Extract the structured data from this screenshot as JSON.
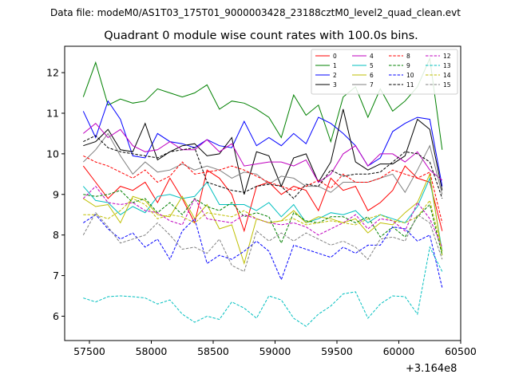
{
  "header": {
    "file_label": "Data file: modeM0/AS1T03_175T01_9000003428_23188cztM0_level2_quad_clean.evt"
  },
  "chart_data": {
    "type": "line",
    "title": "Quadrant 0 module wise count rates with 100.0s bins.",
    "xlabel": "",
    "ylabel": "",
    "x_offset_label": "+3.164e8",
    "xlim": [
      57300,
      60500
    ],
    "ylim": [
      5.4,
      12.65
    ],
    "x_ticks": [
      57500,
      58000,
      58500,
      59000,
      59500,
      60000,
      60500
    ],
    "y_ticks": [
      6,
      7,
      8,
      9,
      10,
      11,
      12
    ],
    "grid": false,
    "legend": {
      "position": "top-right",
      "columns": 4
    },
    "x": [
      57450,
      57550,
      57650,
      57750,
      57850,
      57950,
      58050,
      58150,
      58250,
      58350,
      58450,
      58550,
      58650,
      58750,
      58850,
      58950,
      59050,
      59150,
      59250,
      59350,
      59450,
      59550,
      59650,
      59750,
      59850,
      59950,
      60050,
      60150,
      60250,
      60350
    ],
    "series": [
      {
        "name": "0",
        "color": "#ff0000",
        "dash": "solid",
        "values": [
          9.7,
          9.3,
          8.9,
          9.2,
          9.1,
          9.3,
          8.8,
          9.4,
          8.9,
          8.3,
          9.6,
          9.4,
          9.0,
          8.1,
          9.2,
          9.3,
          9.0,
          9.2,
          9.1,
          8.6,
          9.4,
          9.1,
          9.2,
          8.6,
          8.8,
          9.1,
          9.7,
          9.4,
          9.3,
          8.1
        ]
      },
      {
        "name": "1",
        "color": "#008000",
        "dash": "solid",
        "values": [
          11.4,
          12.25,
          11.2,
          11.35,
          11.25,
          11.3,
          11.6,
          11.5,
          11.4,
          11.5,
          11.7,
          11.1,
          11.3,
          11.25,
          11.1,
          10.9,
          10.4,
          11.45,
          10.95,
          11.2,
          10.3,
          11.4,
          11.65,
          10.9,
          11.6,
          11.05,
          11.3,
          11.65,
          12.35,
          10.1
        ]
      },
      {
        "name": "2",
        "color": "#0000ff",
        "dash": "solid",
        "values": [
          11.05,
          10.4,
          11.3,
          10.85,
          9.95,
          9.9,
          10.5,
          10.3,
          10.25,
          10.15,
          10.35,
          10.2,
          10.15,
          10.8,
          10.2,
          10.4,
          10.2,
          10.5,
          10.25,
          10.9,
          10.75,
          10.5,
          10.2,
          9.7,
          9.9,
          10.55,
          10.75,
          10.9,
          10.85,
          9.2
        ]
      },
      {
        "name": "3",
        "color": "#000000",
        "dash": "solid",
        "values": [
          10.2,
          10.3,
          10.6,
          10.1,
          10.05,
          10.75,
          9.85,
          10.05,
          10.2,
          10.25,
          9.95,
          10.0,
          10.4,
          9.0,
          10.05,
          9.95,
          9.2,
          9.9,
          10.0,
          9.3,
          9.8,
          11.1,
          9.8,
          9.6,
          9.75,
          9.75,
          9.95,
          10.85,
          10.6,
          9.1
        ]
      },
      {
        "name": "4",
        "color": "#bf00bf",
        "dash": "solid",
        "values": [
          10.5,
          10.75,
          10.4,
          10.6,
          10.2,
          10.05,
          10.1,
          10.3,
          10.1,
          10.1,
          10.35,
          10.05,
          10.25,
          9.7,
          9.75,
          9.8,
          9.8,
          9.7,
          9.85,
          9.3,
          9.5,
          10.0,
          10.2,
          9.7,
          10.0,
          10.0,
          9.8,
          10.05,
          9.6,
          9.35
        ]
      },
      {
        "name": "5",
        "color": "#00bfbf",
        "dash": "solid",
        "values": [
          9.2,
          8.85,
          8.8,
          8.5,
          8.7,
          8.55,
          8.95,
          9.0,
          8.9,
          8.95,
          9.3,
          8.75,
          8.75,
          8.75,
          8.6,
          8.8,
          8.45,
          8.75,
          8.3,
          8.4,
          8.55,
          8.5,
          8.6,
          8.3,
          8.5,
          8.4,
          8.3,
          8.7,
          9.4,
          7.6
        ]
      },
      {
        "name": "6",
        "color": "#bfbf00",
        "dash": "solid",
        "values": [
          8.9,
          8.7,
          8.75,
          8.3,
          8.95,
          8.85,
          8.5,
          8.45,
          8.95,
          8.4,
          8.75,
          8.15,
          8.25,
          7.3,
          8.4,
          8.3,
          8.35,
          8.6,
          8.3,
          8.45,
          8.4,
          8.3,
          8.4,
          8.05,
          8.3,
          8.25,
          8.55,
          8.8,
          9.5,
          7.5
        ]
      },
      {
        "name": "7",
        "color": "#808080",
        "dash": "solid",
        "values": [
          9.8,
          10.1,
          10.5,
          9.95,
          9.5,
          9.8,
          9.55,
          9.6,
          9.75,
          9.6,
          9.7,
          9.6,
          9.4,
          9.55,
          9.5,
          9.25,
          9.45,
          9.4,
          9.2,
          9.2,
          9.05,
          9.3,
          9.3,
          9.3,
          9.4,
          9.5,
          9.05,
          9.6,
          10.2,
          9.0
        ]
      },
      {
        "name": "8",
        "color": "#ff0000",
        "dash": "dashed",
        "values": [
          9.95,
          9.8,
          9.7,
          9.55,
          9.4,
          9.6,
          9.3,
          9.45,
          9.8,
          9.5,
          9.55,
          9.6,
          9.7,
          9.6,
          9.45,
          9.3,
          9.2,
          9.1,
          9.2,
          9.35,
          9.15,
          9.5,
          9.3,
          9.3,
          9.4,
          9.6,
          9.5,
          9.4,
          9.55,
          8.3
        ]
      },
      {
        "name": "9",
        "color": "#008000",
        "dash": "dashed",
        "values": [
          9.0,
          8.95,
          9.0,
          9.1,
          8.8,
          8.9,
          8.55,
          8.8,
          8.5,
          8.9,
          8.7,
          8.6,
          8.8,
          8.45,
          8.55,
          8.45,
          7.8,
          8.55,
          8.35,
          8.3,
          8.45,
          8.45,
          8.3,
          8.45,
          7.95,
          8.2,
          7.95,
          8.45,
          8.75,
          7.5
        ]
      },
      {
        "name": "10",
        "color": "#0000ff",
        "dash": "dashed",
        "values": [
          8.3,
          8.5,
          8.15,
          7.9,
          8.05,
          7.7,
          7.9,
          7.4,
          8.1,
          8.4,
          7.3,
          7.5,
          7.4,
          7.6,
          7.85,
          7.6,
          6.9,
          7.75,
          7.65,
          7.55,
          7.45,
          7.7,
          7.55,
          7.75,
          7.75,
          8.2,
          8.15,
          7.85,
          8.0,
          6.7
        ]
      },
      {
        "name": "11",
        "color": "#000000",
        "dash": "dashed",
        "values": [
          10.3,
          10.45,
          10.15,
          10.05,
          10.0,
          9.95,
          9.9,
          10.05,
          10.1,
          10.15,
          9.3,
          9.2,
          9.1,
          9.05,
          9.2,
          9.25,
          9.2,
          8.9,
          9.25,
          9.2,
          9.6,
          9.45,
          9.5,
          9.5,
          9.55,
          9.8,
          10.05,
          10.0,
          9.8,
          8.9
        ]
      },
      {
        "name": "12",
        "color": "#bf00bf",
        "dash": "dashed",
        "values": [
          8.9,
          9.2,
          8.8,
          8.75,
          8.8,
          8.6,
          8.55,
          8.35,
          8.25,
          8.9,
          8.4,
          8.35,
          8.3,
          8.5,
          8.4,
          8.3,
          8.25,
          8.3,
          8.2,
          8.0,
          8.15,
          8.3,
          8.5,
          8.15,
          8.4,
          8.35,
          8.1,
          8.8,
          8.4,
          7.7
        ]
      },
      {
        "name": "13",
        "color": "#00bfbf",
        "dash": "dashed",
        "values": [
          6.45,
          6.35,
          6.48,
          6.5,
          6.48,
          6.45,
          6.3,
          6.4,
          6.05,
          5.85,
          6.0,
          5.92,
          6.35,
          6.2,
          5.95,
          6.5,
          6.4,
          5.95,
          5.75,
          6.05,
          6.25,
          6.55,
          6.6,
          5.95,
          6.3,
          6.5,
          6.48,
          6.05,
          7.7,
          7.1
        ]
      },
      {
        "name": "14",
        "color": "#bfbf00",
        "dash": "dashed",
        "values": [
          8.5,
          8.5,
          8.4,
          8.6,
          8.9,
          8.75,
          8.4,
          8.5,
          8.45,
          8.3,
          8.55,
          8.5,
          8.45,
          8.6,
          8.4,
          8.3,
          8.35,
          8.4,
          8.25,
          8.3,
          8.35,
          8.3,
          8.25,
          8.4,
          8.5,
          8.35,
          8.3,
          8.45,
          8.85,
          7.6
        ]
      },
      {
        "name": "15",
        "color": "#808080",
        "dash": "dashed",
        "values": [
          8.0,
          8.55,
          8.2,
          7.8,
          7.9,
          8.0,
          8.3,
          8.0,
          7.65,
          7.7,
          7.55,
          7.9,
          7.25,
          7.1,
          8.1,
          7.85,
          8.05,
          7.85,
          8.05,
          7.9,
          7.75,
          7.85,
          7.7,
          7.4,
          7.9,
          7.95,
          7.85,
          8.5,
          8.3,
          7.4
        ]
      }
    ]
  }
}
